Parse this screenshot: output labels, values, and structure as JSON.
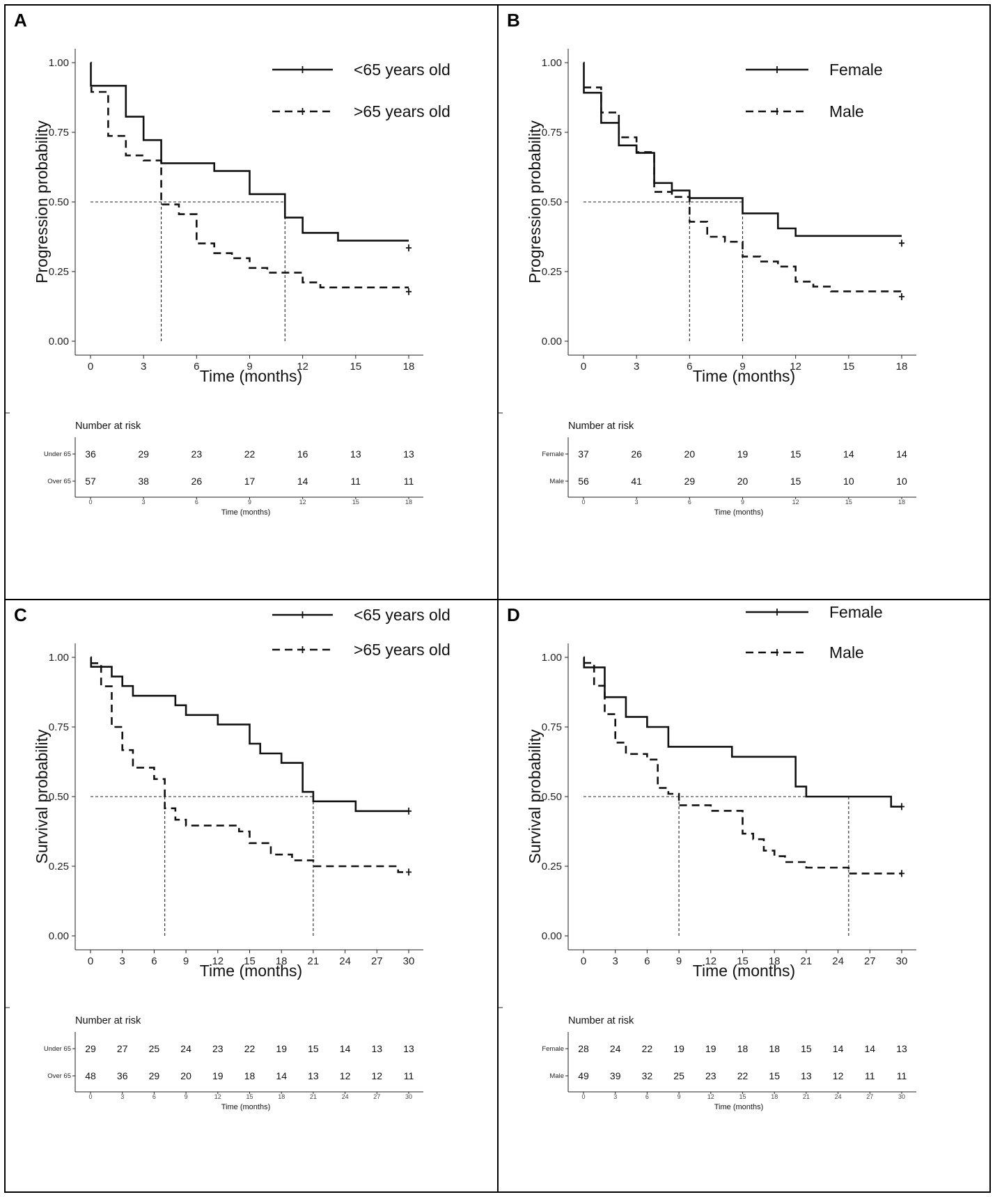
{
  "chart_data": [
    {
      "id": "A",
      "type": "line",
      "panel_label": "A",
      "ylabel": "Progression probability",
      "xlabel": "Time (months)",
      "xticks": [
        0,
        3,
        6,
        9,
        12,
        15,
        18
      ],
      "yticks": [
        "0.00",
        "0.25",
        "0.50",
        "0.75",
        "1.00"
      ],
      "xlim": [
        0,
        18
      ],
      "ylim": [
        0,
        1
      ],
      "median_line": {
        "y": 0.5,
        "x": [
          4,
          11
        ]
      },
      "series": [
        {
          "name": "<65 years old",
          "style": "solid",
          "steps": [
            [
              0,
              1.0
            ],
            [
              0.02,
              0.917
            ],
            [
              2,
              0.806
            ],
            [
              3,
              0.722
            ],
            [
              4,
              0.639
            ],
            [
              7,
              0.611
            ],
            [
              9,
              0.528
            ],
            [
              11,
              0.444
            ],
            [
              12,
              0.389
            ],
            [
              14,
              0.361
            ],
            [
              18,
              0.361
            ]
          ],
          "censor": [
            [
              18,
              0.335
            ]
          ]
        },
        {
          "name": ">65 years old",
          "style": "dashed",
          "steps": [
            [
              0,
              0.91
            ],
            [
              0.05,
              0.895
            ],
            [
              1,
              0.737
            ],
            [
              2,
              0.667
            ],
            [
              3,
              0.649
            ],
            [
              4,
              0.491
            ],
            [
              5,
              0.456
            ],
            [
              6,
              0.351
            ],
            [
              7,
              0.316
            ],
            [
              8,
              0.298
            ],
            [
              9,
              0.263
            ],
            [
              10,
              0.246
            ],
            [
              12,
              0.211
            ],
            [
              13,
              0.193
            ],
            [
              18,
              0.193
            ]
          ],
          "censor": [
            [
              18,
              0.178
            ]
          ]
        }
      ],
      "risk_table": {
        "title": "Number at risk",
        "xlabel": "Time (months)",
        "groups": [
          {
            "name": "Under 65",
            "values": [
              "36",
              "29",
              "23",
              "22",
              "16",
              "13",
              "13"
            ]
          },
          {
            "name": "Over 65",
            "values": [
              "57",
              "38",
              "26",
              "17",
              "14",
              "11",
              "11"
            ]
          }
        ]
      }
    },
    {
      "id": "B",
      "type": "line",
      "panel_label": "B",
      "ylabel": "Progression probability",
      "xlabel": "Time (months)",
      "xticks": [
        0,
        3,
        6,
        9,
        12,
        15,
        18
      ],
      "yticks": [
        "0.00",
        "0.25",
        "0.50",
        "0.75",
        "1.00"
      ],
      "xlim": [
        0,
        18
      ],
      "ylim": [
        0,
        1
      ],
      "median_line": {
        "y": 0.5,
        "x": [
          6,
          9
        ]
      },
      "series": [
        {
          "name": "Female",
          "style": "solid",
          "steps": [
            [
              0,
              1.0
            ],
            [
              0.02,
              0.892
            ],
            [
              1,
              0.784
            ],
            [
              2,
              0.703
            ],
            [
              3,
              0.676
            ],
            [
              4,
              0.568
            ],
            [
              5,
              0.541
            ],
            [
              6,
              0.514
            ],
            [
              9,
              0.459
            ],
            [
              11,
              0.405
            ],
            [
              12,
              0.378
            ],
            [
              18,
              0.378
            ]
          ],
          "censor": [
            [
              18,
              0.352
            ]
          ]
        },
        {
          "name": "Male",
          "style": "dashed",
          "steps": [
            [
              0,
              0.911
            ],
            [
              1,
              0.821
            ],
            [
              2,
              0.732
            ],
            [
              3,
              0.679
            ],
            [
              4,
              0.536
            ],
            [
              5,
              0.518
            ],
            [
              6,
              0.429
            ],
            [
              7,
              0.375
            ],
            [
              8,
              0.357
            ],
            [
              9,
              0.304
            ],
            [
              10,
              0.286
            ],
            [
              11,
              0.268
            ],
            [
              12,
              0.214
            ],
            [
              13,
              0.196
            ],
            [
              14,
              0.179
            ],
            [
              18,
              0.179
            ]
          ],
          "censor": [
            [
              18,
              0.16
            ]
          ]
        }
      ],
      "risk_table": {
        "title": "Number at risk",
        "xlabel": "Time (months)",
        "groups": [
          {
            "name": "Female",
            "values": [
              "37",
              "26",
              "20",
              "19",
              "15",
              "14",
              "14"
            ]
          },
          {
            "name": "Male",
            "values": [
              "56",
              "41",
              "29",
              "20",
              "15",
              "10",
              "10"
            ]
          }
        ]
      }
    },
    {
      "id": "C",
      "type": "line",
      "panel_label": "C",
      "ylabel": "Survival probability",
      "xlabel": "Time (months)",
      "xticks": [
        0,
        3,
        6,
        9,
        12,
        15,
        18,
        21,
        24,
        27,
        30
      ],
      "yticks": [
        "0.00",
        "0.25",
        "0.50",
        "0.75",
        "1.00"
      ],
      "xlim": [
        0,
        30
      ],
      "ylim": [
        0,
        1
      ],
      "median_line": {
        "y": 0.5,
        "x": [
          7,
          21
        ]
      },
      "series": [
        {
          "name": "<65 years old",
          "style": "solid",
          "steps": [
            [
              0,
              1.0
            ],
            [
              0.05,
              0.966
            ],
            [
              2,
              0.931
            ],
            [
              3,
              0.897
            ],
            [
              4,
              0.862
            ],
            [
              8,
              0.828
            ],
            [
              9,
              0.793
            ],
            [
              12,
              0.759
            ],
            [
              15,
              0.69
            ],
            [
              16,
              0.655
            ],
            [
              18,
              0.621
            ],
            [
              20,
              0.517
            ],
            [
              21,
              0.483
            ],
            [
              25,
              0.448
            ],
            [
              30,
              0.448
            ]
          ],
          "censor": [
            [
              30,
              0.448
            ]
          ]
        },
        {
          "name": ">65 years old",
          "style": "dashed",
          "steps": [
            [
              0,
              0.979
            ],
            [
              1,
              0.896
            ],
            [
              2,
              0.75
            ],
            [
              3,
              0.667
            ],
            [
              4,
              0.604
            ],
            [
              6,
              0.563
            ],
            [
              7,
              0.458
            ],
            [
              8,
              0.417
            ],
            [
              9,
              0.396
            ],
            [
              14,
              0.375
            ],
            [
              15,
              0.333
            ],
            [
              17,
              0.292
            ],
            [
              19,
              0.271
            ],
            [
              21,
              0.25
            ],
            [
              29,
              0.229
            ],
            [
              30,
              0.229
            ]
          ],
          "censor": [
            [
              30,
              0.229
            ]
          ]
        }
      ],
      "risk_table": {
        "title": "Number at risk",
        "xlabel": "Time (months)",
        "groups": [
          {
            "name": "Under 65",
            "values": [
              "29",
              "27",
              "25",
              "24",
              "23",
              "22",
              "19",
              "15",
              "14",
              "13",
              "13"
            ]
          },
          {
            "name": "Over 65",
            "values": [
              "48",
              "36",
              "29",
              "20",
              "19",
              "18",
              "14",
              "13",
              "12",
              "12",
              "11"
            ]
          }
        ]
      }
    },
    {
      "id": "D",
      "type": "line",
      "panel_label": "D",
      "ylabel": "Survival probability",
      "xlabel": "Time (months)",
      "xticks": [
        0,
        3,
        6,
        9,
        12,
        15,
        18,
        21,
        24,
        27,
        30
      ],
      "yticks": [
        "0.00",
        "0.25",
        "0.50",
        "0.75",
        "1.00"
      ],
      "xlim": [
        0,
        30
      ],
      "ylim": [
        0,
        1
      ],
      "median_line": {
        "y": 0.5,
        "x": [
          9,
          25
        ]
      },
      "series": [
        {
          "name": "Female",
          "style": "solid",
          "steps": [
            [
              0,
              1.0
            ],
            [
              0.05,
              0.964
            ],
            [
              2,
              0.857
            ],
            [
              4,
              0.786
            ],
            [
              6,
              0.75
            ],
            [
              8,
              0.679
            ],
            [
              14,
              0.643
            ],
            [
              20,
              0.536
            ],
            [
              21,
              0.5
            ],
            [
              29,
              0.464
            ],
            [
              30,
              0.464
            ]
          ],
          "censor": [
            [
              30,
              0.464
            ]
          ]
        },
        {
          "name": "Male",
          "style": "dashed",
          "steps": [
            [
              0,
              0.98
            ],
            [
              1,
              0.898
            ],
            [
              2,
              0.796
            ],
            [
              3,
              0.694
            ],
            [
              4,
              0.653
            ],
            [
              6,
              0.633
            ],
            [
              7,
              0.531
            ],
            [
              8,
              0.51
            ],
            [
              9,
              0.469
            ],
            [
              12,
              0.449
            ],
            [
              15,
              0.367
            ],
            [
              16,
              0.347
            ],
            [
              17,
              0.306
            ],
            [
              18,
              0.286
            ],
            [
              19,
              0.265
            ],
            [
              21,
              0.245
            ],
            [
              25,
              0.224
            ],
            [
              30,
              0.224
            ]
          ],
          "censor": [
            [
              30,
              0.224
            ]
          ]
        }
      ],
      "risk_table": {
        "title": "Number at risk",
        "xlabel": "Time (months)",
        "groups": [
          {
            "name": "Female",
            "values": [
              "28",
              "24",
              "22",
              "19",
              "19",
              "18",
              "18",
              "15",
              "14",
              "14",
              "13"
            ]
          },
          {
            "name": "Male",
            "values": [
              "49",
              "39",
              "32",
              "25",
              "23",
              "22",
              "15",
              "13",
              "12",
              "11",
              "11"
            ]
          }
        ]
      }
    }
  ]
}
